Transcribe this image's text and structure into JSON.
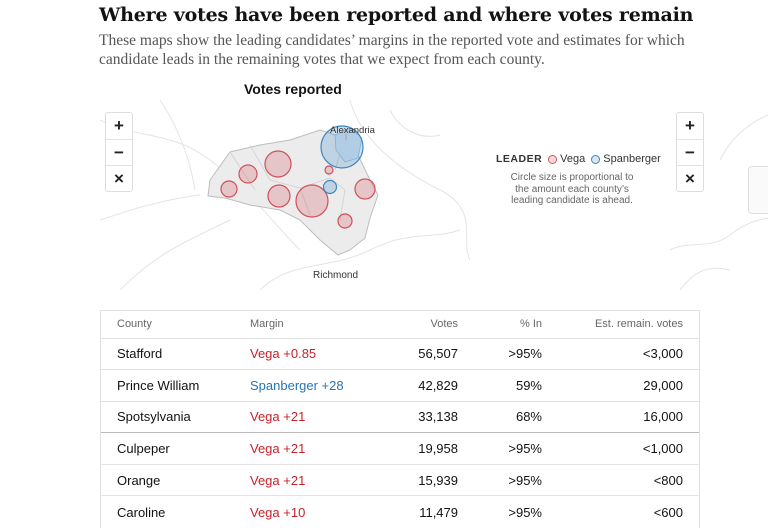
{
  "headline": "Where votes have been reported and where votes remain",
  "dek": "These maps show the leading candidates’ margins in the reported vote and estimates for which candidate leads in the remaining votes that we expect from each county.",
  "map": {
    "title": "Votes reported",
    "labels": {
      "alexandria": "Alexandria",
      "richmond": "Richmond"
    },
    "zoom": {
      "in": "+",
      "out": "−",
      "reset": "×"
    }
  },
  "legend": {
    "lead": "LEADER",
    "vega": "Vega",
    "spanberger": "Spanberger",
    "note": "Circle size is proportional to the amount each county’s leading candidate is ahead.",
    "colors": {
      "vega": "#c8202c",
      "spanberger": "#2775b6"
    }
  },
  "table": {
    "headers": {
      "county": "County",
      "margin": "Margin",
      "votes": "Votes",
      "pct_in": "% In",
      "remaining": "Est. remain. votes"
    },
    "rows": [
      {
        "county": "Stafford",
        "margin": "Vega +0.85",
        "leader": "vega",
        "votes": "56,507",
        "pct_in": ">95%",
        "remaining": "<3,000"
      },
      {
        "county": "Prince William",
        "margin": "Spanberger +28",
        "leader": "spanberger",
        "votes": "42,829",
        "pct_in": "59%",
        "remaining": "29,000"
      },
      {
        "county": "Spotsylvania",
        "margin": "Vega +21",
        "leader": "vega",
        "votes": "33,138",
        "pct_in": "68%",
        "remaining": "16,000"
      },
      {
        "county": "Culpeper",
        "margin": "Vega +21",
        "leader": "vega",
        "votes": "19,958",
        "pct_in": ">95%",
        "remaining": "<1,000"
      },
      {
        "county": "Orange",
        "margin": "Vega +21",
        "leader": "vega",
        "votes": "15,939",
        "pct_in": ">95%",
        "remaining": "<800"
      },
      {
        "county": "Caroline",
        "margin": "Vega +10",
        "leader": "vega",
        "votes": "11,479",
        "pct_in": ">95%",
        "remaining": "<600"
      }
    ]
  }
}
